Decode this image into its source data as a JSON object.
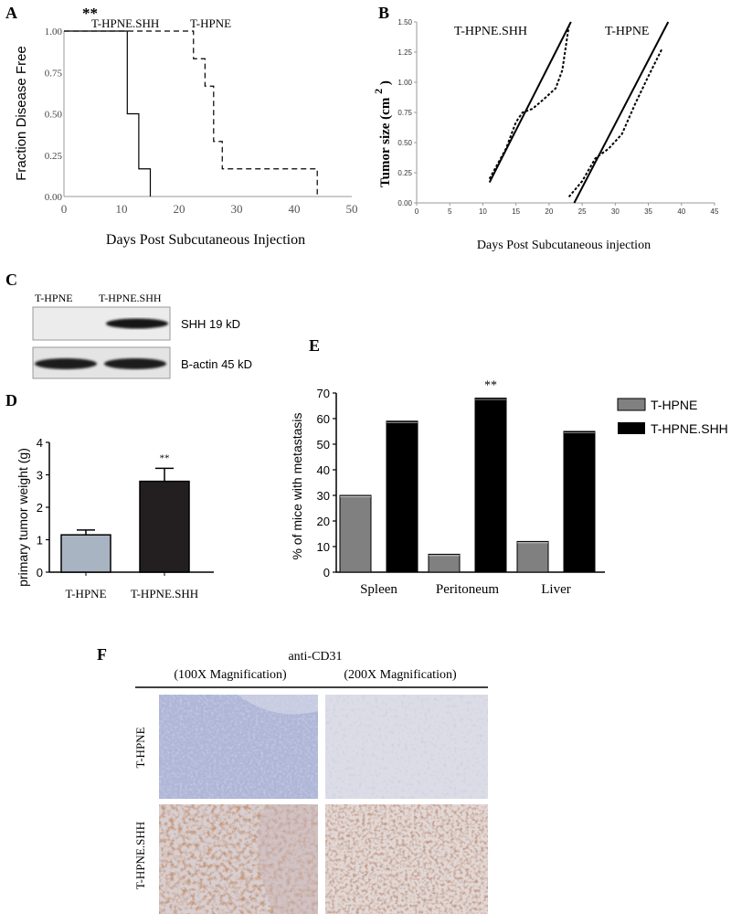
{
  "panels": {
    "a": "A",
    "b": "B",
    "c": "C",
    "d": "D",
    "e": "E",
    "f": "F"
  },
  "chart_data": [
    {
      "id": "A",
      "type": "line",
      "step": true,
      "xlabel": "Days Post Subcutaneous Injection",
      "ylabel": "Fraction Disease Free",
      "xlim": [
        0,
        50
      ],
      "ylim": [
        0,
        1
      ],
      "xticks": [
        "0",
        "10",
        "20",
        "30",
        "40",
        "50"
      ],
      "yticks": [
        "0.00",
        "0.25",
        "0.50",
        "0.75",
        "1.00"
      ],
      "significance": "**",
      "series": [
        {
          "name": "T-HPNE.SHH",
          "style": "solid",
          "x": [
            0,
            11,
            11,
            13,
            13,
            15
          ],
          "y": [
            1.0,
            1.0,
            0.5,
            0.5,
            0.167,
            0.167
          ],
          "drop_end": 0.0
        },
        {
          "name": "T-HPNE",
          "style": "dashed",
          "x": [
            0,
            22.5,
            22.5,
            24.5,
            24.5,
            26,
            26,
            27.5,
            27.5,
            29,
            29,
            44
          ],
          "y": [
            1.0,
            1.0,
            0.833,
            0.833,
            0.667,
            0.667,
            0.333,
            0.333,
            0.167,
            0.167,
            0.167,
            0.167
          ],
          "drop_end": 0.0
        }
      ]
    },
    {
      "id": "B",
      "type": "line",
      "xlabel": "Days Post Subcutaneous injection",
      "ylabel": "Tumor size (cm",
      "ylabel_sup": "2",
      "ylabel_close": ")",
      "xlim": [
        0,
        45
      ],
      "ylim": [
        0,
        1.5
      ],
      "xticks": [
        "0",
        "5",
        "10",
        "15",
        "20",
        "25",
        "30",
        "35",
        "40",
        "45"
      ],
      "yticks": [
        "0.00",
        "0.25",
        "0.50",
        "0.75",
        "1.00",
        "1.25",
        "1.50"
      ],
      "series": [
        {
          "name": "T-HPNE.SHH",
          "measured": {
            "x": [
              11,
              13.5,
              15,
              16,
              17.5,
              19,
              21,
              22,
              23
            ],
            "y": [
              0.2,
              0.45,
              0.67,
              0.75,
              0.78,
              0.85,
              0.95,
              1.1,
              1.47
            ]
          },
          "fit": {
            "x": [
              11,
              23.3
            ],
            "y": [
              0.17,
              1.5
            ]
          }
        },
        {
          "name": "T-HPNE",
          "measured": {
            "x": [
              23,
              25,
              27,
              29,
              31,
              33,
              35,
              37
            ],
            "y": [
              0.05,
              0.18,
              0.37,
              0.45,
              0.57,
              0.82,
              1.05,
              1.27
            ]
          },
          "fit": {
            "x": [
              23.8,
              38
            ],
            "y": [
              0.0,
              1.5
            ]
          }
        }
      ]
    },
    {
      "id": "D",
      "type": "bar",
      "ylabel": "primary tumor weight (g)",
      "ylim": [
        0,
        4
      ],
      "yticks": [
        "0",
        "1",
        "2",
        "3",
        "4"
      ],
      "categories": [
        "T-HPNE",
        "T-HPNE.SHH"
      ],
      "values": [
        1.15,
        2.8
      ],
      "errors": [
        0.15,
        0.4
      ],
      "colors": [
        "#a9b4c2",
        "#231f20"
      ],
      "significance": [
        "",
        "**"
      ]
    },
    {
      "id": "E",
      "type": "bar",
      "ylabel": "% of mice with metastasis",
      "ylim": [
        0,
        70
      ],
      "yticks": [
        "0",
        "10",
        "20",
        "30",
        "40",
        "50",
        "60",
        "70"
      ],
      "categories": [
        "Spleen",
        "Peritoneum",
        "Liver"
      ],
      "series": [
        {
          "name": "T-HPNE",
          "values": [
            30,
            7,
            12
          ],
          "color": "#808080"
        },
        {
          "name": "T-HPNE.SHH",
          "values": [
            59,
            68,
            55
          ],
          "color": "#000000"
        }
      ],
      "significance": [
        "",
        "**",
        ""
      ],
      "legend": "right"
    }
  ],
  "blot": {
    "lane_labels": [
      "T-HPNE",
      "T-HPNE.SHH"
    ],
    "rows": [
      {
        "label": "SHH 19 kD"
      },
      {
        "label": "B-actin 45 kD"
      }
    ]
  },
  "histology": {
    "title": "anti-CD31",
    "columns": [
      "(100X Magnification)",
      "(200X Magnification)"
    ],
    "rows": [
      "T-HPNE",
      "T-HPNE.SHH"
    ],
    "colors": {
      "hematoxylin": "#8d97c4",
      "background": "#d9dbe8",
      "stain": "#8a4a2a"
    }
  }
}
